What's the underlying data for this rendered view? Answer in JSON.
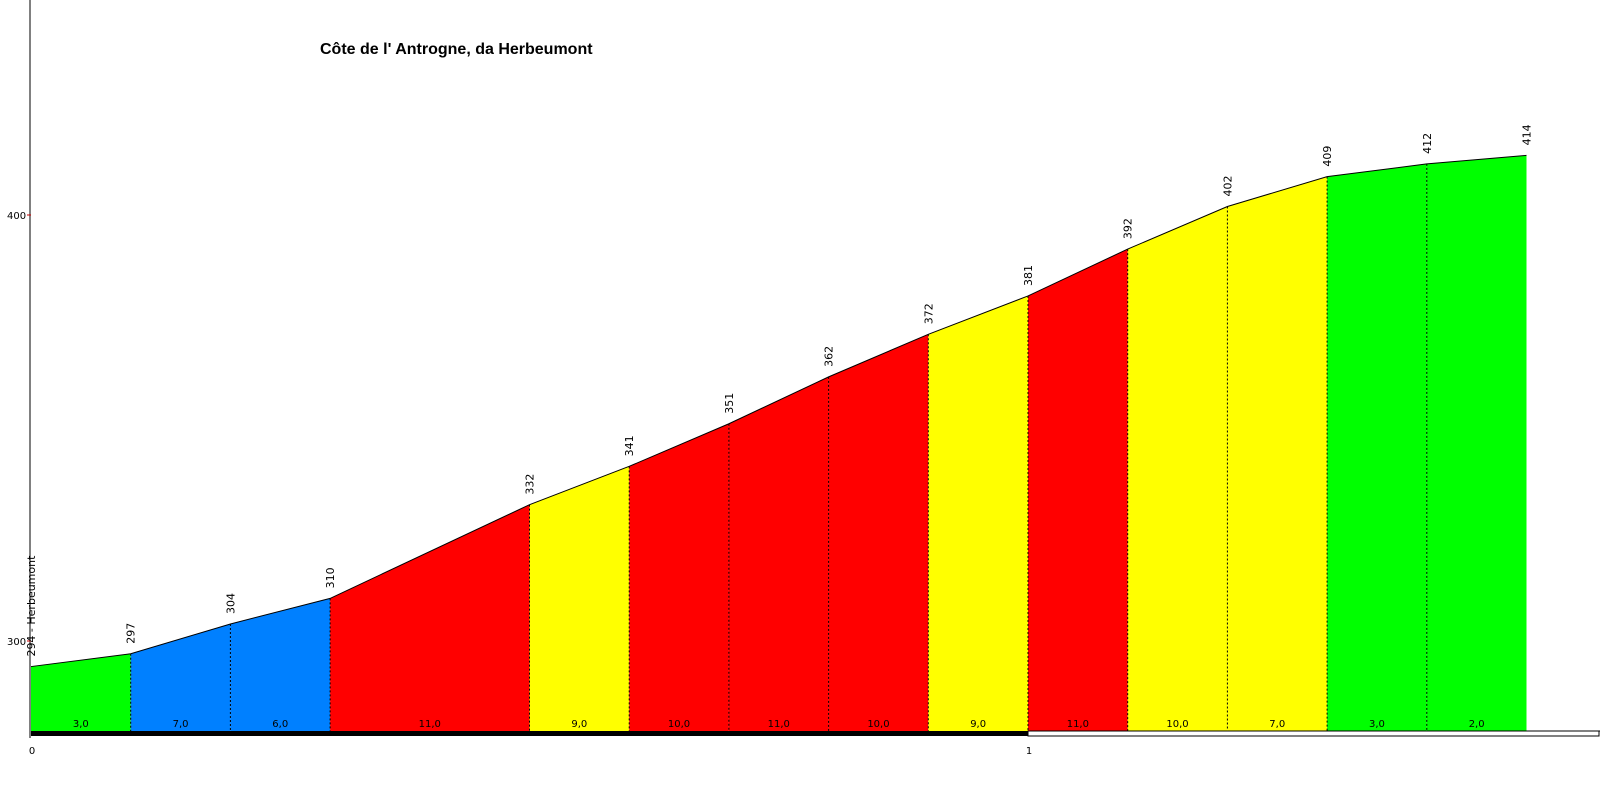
{
  "chart_data": {
    "type": "area",
    "title": "Côte de l' Antrogne, da Herbeumont",
    "xlabel": "",
    "ylabel": "",
    "y_ticks": [
      "300",
      "400"
    ],
    "x_ticks": [
      "0",
      "1"
    ],
    "x": [
      0,
      0.1,
      0.2,
      0.3,
      0.5,
      0.6,
      0.7,
      0.8,
      0.9,
      1.0,
      1.1,
      1.2,
      1.3,
      1.4,
      1.5
    ],
    "elevation": [
      294,
      297,
      304,
      310,
      332,
      341,
      351,
      362,
      372,
      381,
      392,
      402,
      409,
      412,
      414
    ],
    "elevation_labels": [
      "294 - Herbeumont",
      "297",
      "304",
      "310",
      "332",
      "341",
      "351",
      "362",
      "372",
      "381",
      "392",
      "402",
      "409",
      "412",
      "414"
    ],
    "segments": [
      {
        "grade": "3,0",
        "color": "#00ff00"
      },
      {
        "grade": "7,0",
        "color": "#0080ff"
      },
      {
        "grade": "6,0",
        "color": "#0080ff"
      },
      {
        "grade": "11,0",
        "color": "#ff0000"
      },
      {
        "grade": "9,0",
        "color": "#ffff00"
      },
      {
        "grade": "10,0",
        "color": "#ff0000"
      },
      {
        "grade": "11,0",
        "color": "#ff0000"
      },
      {
        "grade": "10,0",
        "color": "#ff0000"
      },
      {
        "grade": "9,0",
        "color": "#ffff00"
      },
      {
        "grade": "11,0",
        "color": "#ff0000"
      },
      {
        "grade": "10,0",
        "color": "#ffff00"
      },
      {
        "grade": "7,0",
        "color": "#ffff00"
      },
      {
        "grade": "3,0",
        "color": "#00ff00"
      },
      {
        "grade": "2,0",
        "color": "#00ff00"
      }
    ],
    "grid": false
  }
}
